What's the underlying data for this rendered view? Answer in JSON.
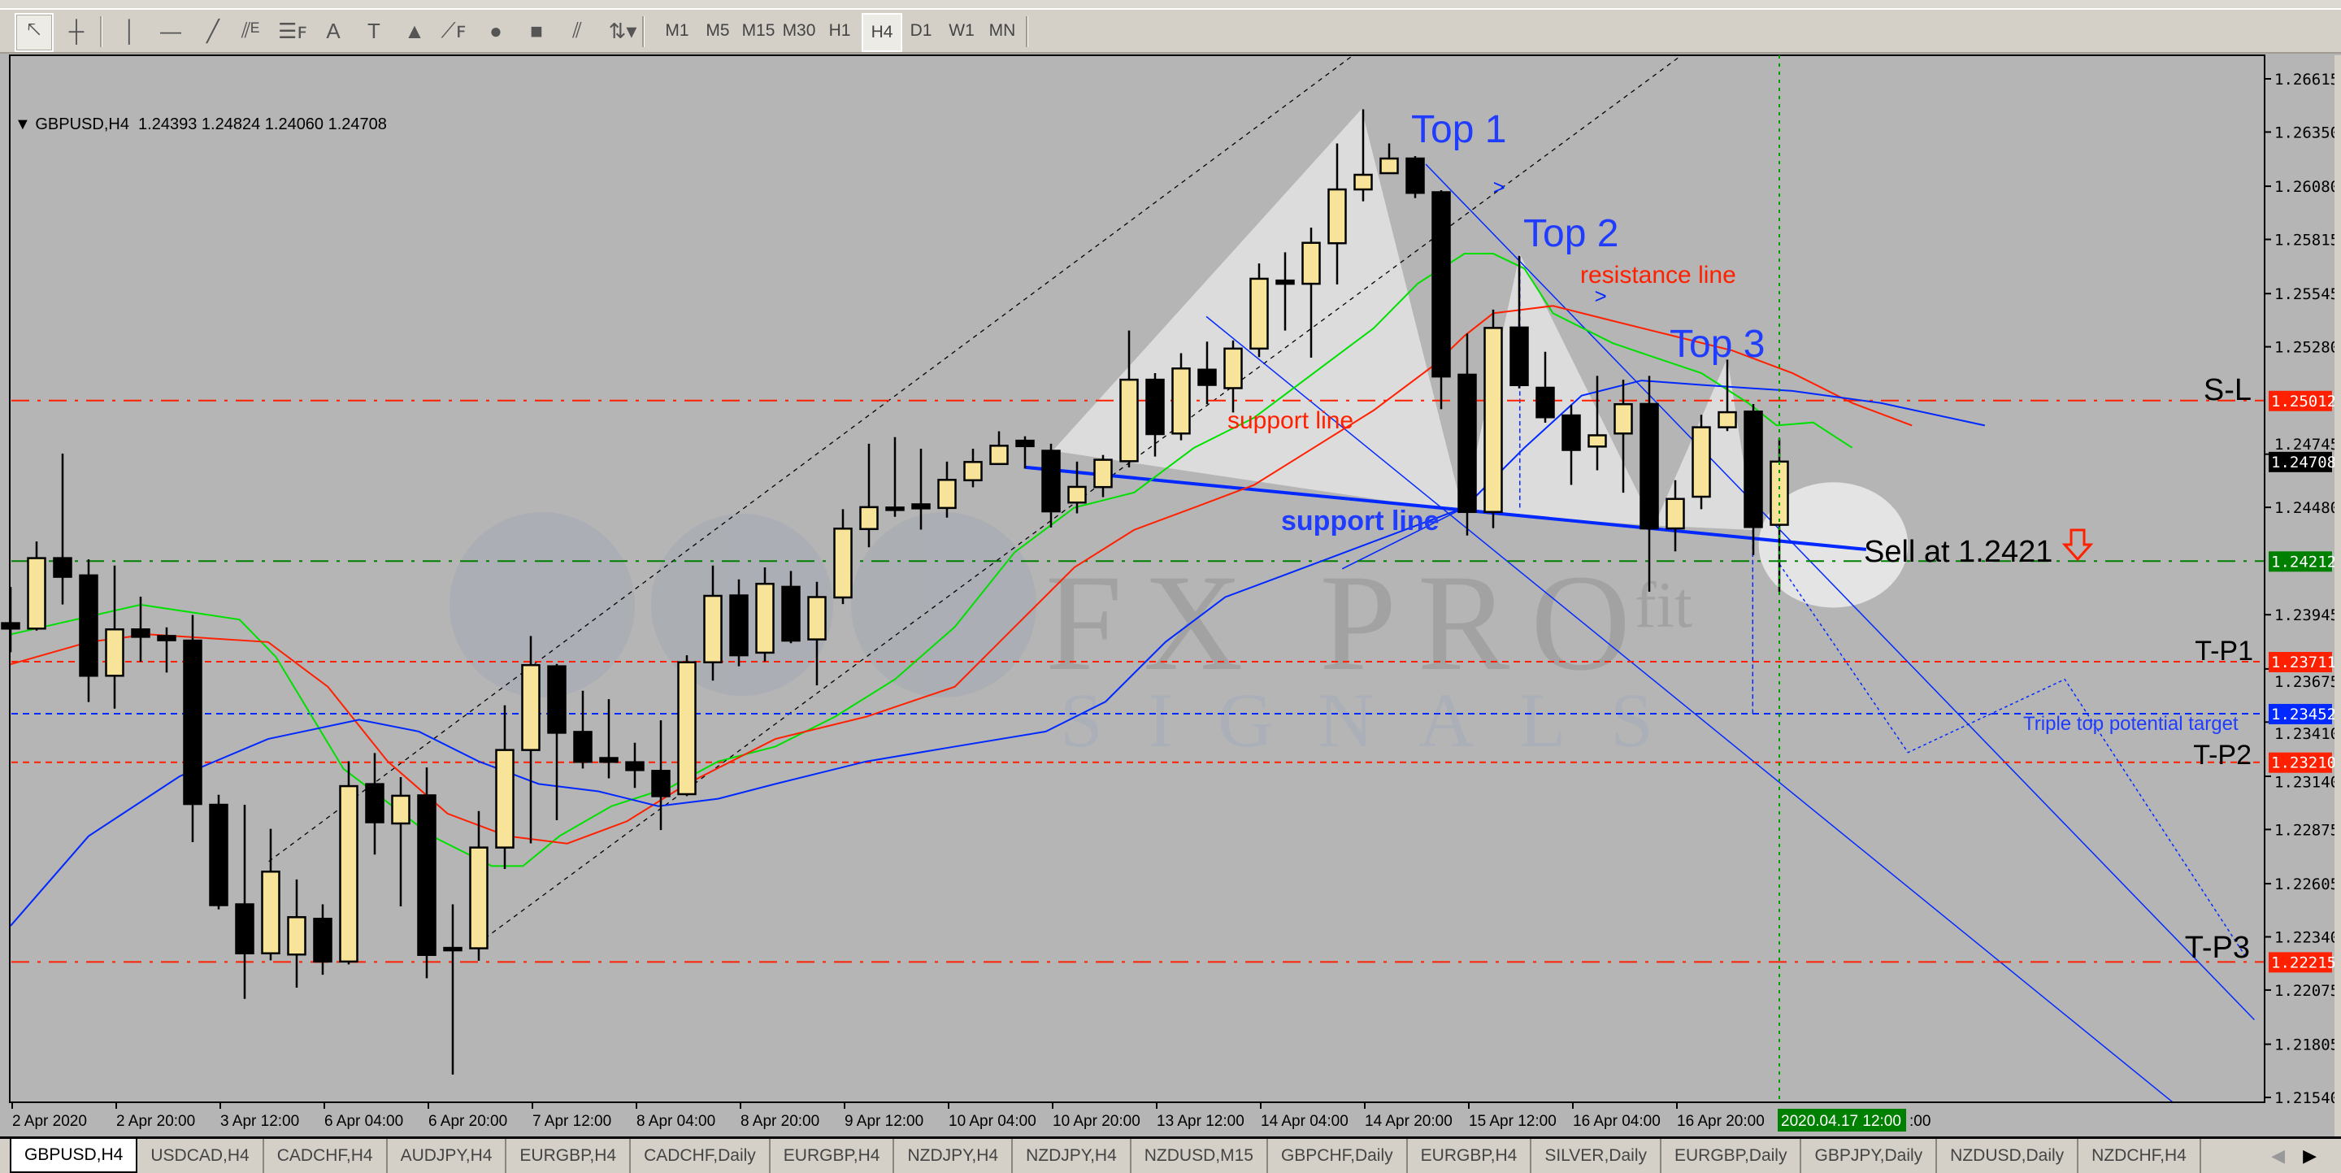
{
  "toolbar": {
    "tools": [
      {
        "name": "cursor",
        "glyph": "🡔"
      },
      {
        "name": "crosshair",
        "glyph": "┼"
      },
      {
        "name": "vertical-line",
        "glyph": "│"
      },
      {
        "name": "horizontal-line",
        "glyph": "—"
      },
      {
        "name": "trendline",
        "glyph": "╱"
      },
      {
        "name": "equidistant-channel",
        "glyph": "⫽ᴱ"
      },
      {
        "name": "fibonacci-retracement",
        "glyph": "☰ꜰ"
      },
      {
        "name": "text",
        "glyph": "A"
      },
      {
        "name": "text-label",
        "glyph": "T"
      },
      {
        "name": "triangle",
        "glyph": "▲"
      },
      {
        "name": "fibonacci-fan",
        "glyph": "⟋ꜰ"
      },
      {
        "name": "ellipse",
        "glyph": "●"
      },
      {
        "name": "rectangle",
        "glyph": "■"
      },
      {
        "name": "parallel-lines",
        "glyph": "⫽"
      },
      {
        "name": "arrows",
        "glyph": "⇅▾"
      }
    ],
    "timeframes": [
      "M1",
      "M5",
      "M15",
      "M30",
      "H1",
      "H4",
      "D1",
      "W1",
      "MN"
    ],
    "active_timeframe": "H4"
  },
  "chart": {
    "header": "GBPUSD,H4  1.24393 1.24824 1.24060 1.24708",
    "annotations": {
      "top1": "Top 1",
      "top2": "Top 2",
      "top3": "Top 3",
      "resistance": "resistance line",
      "support_red": "support line",
      "support_blue": "support line",
      "sell": "Sell at 1.2421",
      "triple_target": "Triple top potential target",
      "sl": "S-L",
      "tp1": "T-P1",
      "tp2": "T-P2",
      "tp3": "T-P3"
    },
    "watermark": {
      "main": "FX PRO",
      "sup": "fit",
      "sub": "SIGNALS"
    },
    "crosshair_time_badge": "2020.04.17 12:00",
    "time_label_tail": ":00"
  },
  "chart_data": {
    "type": "candlestick",
    "symbol": "GBPUSD",
    "timeframe": "H4",
    "ylim": [
      1.2152,
      1.2671
    ],
    "colors": {
      "bull": "#f8e498",
      "bear": "#000000",
      "background": "#b5b5b5",
      "ma_fast": "#00e000",
      "ma_mid": "#ff2000",
      "ma_slow": "#0028ff"
    },
    "price_ticks": [
      "1.26615",
      "1.26350",
      "1.26080",
      "1.25815",
      "1.25545",
      "1.25280",
      "1.24745",
      "1.24480",
      "1.23945",
      "1.23675",
      "1.23410",
      "1.23140",
      "1.22875",
      "1.22605",
      "1.22340",
      "1.22075",
      "1.21805",
      "1.21540"
    ],
    "time_labels": [
      "2 Apr 2020",
      "2 Apr 20:00",
      "3 Apr 12:00",
      "6 Apr 04:00",
      "6 Apr 20:00",
      "7 Apr 12:00",
      "8 Apr 04:00",
      "8 Apr 20:00",
      "9 Apr 12:00",
      "10 Apr 04:00",
      "10 Apr 20:00",
      "13 Apr 12:00",
      "14 Apr 04:00",
      "14 Apr 20:00",
      "15 Apr 12:00",
      "16 Apr 04:00",
      "16 Apr 20:00"
    ],
    "ohlc": [
      [
        1.23903,
        1.24083,
        1.23758,
        1.23876
      ],
      [
        1.23876,
        1.2431,
        1.23866,
        1.24227
      ],
      [
        1.24227,
        1.24748,
        1.23996,
        1.24134
      ],
      [
        1.24141,
        1.24221,
        1.2351,
        1.23641
      ],
      [
        1.23641,
        1.2419,
        1.23477,
        1.23872
      ],
      [
        1.23872,
        1.24035,
        1.23711,
        1.23835
      ],
      [
        1.23839,
        1.23882,
        1.23657,
        1.23818
      ],
      [
        1.23816,
        1.23944,
        1.22812,
        1.23002
      ],
      [
        1.22998,
        1.23048,
        1.22477,
        1.22498
      ],
      [
        1.22502,
        1.22998,
        1.22031,
        1.22258
      ],
      [
        1.22258,
        1.22878,
        1.22223,
        1.22665
      ],
      [
        1.22252,
        1.22626,
        1.22087,
        1.22438
      ],
      [
        1.2243,
        1.22502,
        1.22151,
        1.22217
      ],
      [
        1.22217,
        1.23215,
        1.22203,
        1.23091
      ],
      [
        1.23101,
        1.23256,
        1.2275,
        1.22911
      ],
      [
        1.22905,
        1.23136,
        1.22492,
        1.23043
      ],
      [
        1.23045,
        1.23184,
        1.22134,
        1.2225
      ],
      [
        1.22285,
        1.22502,
        1.21654,
        1.22281
      ],
      [
        1.22283,
        1.22967,
        1.22221,
        1.22785
      ],
      [
        1.22785,
        1.23494,
        1.22678,
        1.23271
      ],
      [
        1.23271,
        1.23839,
        1.22806,
        1.23694
      ],
      [
        1.23688,
        1.237,
        1.22921,
        1.23357
      ],
      [
        1.23361,
        1.23566,
        1.23179,
        1.23212
      ],
      [
        1.23231,
        1.23524,
        1.2313,
        1.23212
      ],
      [
        1.2321,
        1.23307,
        1.23082,
        1.23171
      ],
      [
        1.23167,
        1.23419,
        1.22872,
        1.23041
      ],
      [
        1.23051,
        1.23743,
        1.23041,
        1.23708
      ],
      [
        1.23708,
        1.2419,
        1.23617,
        1.24039
      ],
      [
        1.24041,
        1.24121,
        1.23688,
        1.23743
      ],
      [
        1.23756,
        1.24181,
        1.23712,
        1.24099
      ],
      [
        1.24084,
        1.24163,
        1.23803,
        1.23816
      ],
      [
        1.23822,
        1.24109,
        1.23593,
        1.24033
      ],
      [
        1.24031,
        1.24471,
        1.23998,
        1.24374
      ],
      [
        1.24372,
        1.24797,
        1.24281,
        1.24481
      ],
      [
        1.24479,
        1.2483,
        1.24433,
        1.24477
      ],
      [
        1.24495,
        1.24772,
        1.24369,
        1.24475
      ],
      [
        1.24477,
        1.24708,
        1.24429,
        1.24617
      ],
      [
        1.24615,
        1.24772,
        1.2458,
        1.24706
      ],
      [
        1.24696,
        1.24859,
        1.24694,
        1.24787
      ],
      [
        1.24812,
        1.24834,
        1.24673,
        1.24785
      ],
      [
        1.24762,
        1.24797,
        1.2438,
        1.2446
      ],
      [
        1.24504,
        1.24708,
        1.2445,
        1.24582
      ],
      [
        1.24581,
        1.24741,
        1.24531,
        1.24717
      ],
      [
        1.2471,
        1.25361,
        1.24679,
        1.25116
      ],
      [
        1.25116,
        1.25149,
        1.24733,
        1.24845
      ],
      [
        1.24848,
        1.25248,
        1.24814,
        1.25172
      ],
      [
        1.25166,
        1.25306,
        1.24994,
        1.2509
      ],
      [
        1.25074,
        1.25312,
        1.24953,
        1.25271
      ],
      [
        1.25271,
        1.25695,
        1.25229,
        1.25619
      ],
      [
        1.2561,
        1.25751,
        1.25361,
        1.25594
      ],
      [
        1.25594,
        1.25874,
        1.25226,
        1.25798
      ],
      [
        1.25796,
        1.26293,
        1.25591,
        1.26064
      ],
      [
        1.26064,
        1.26463,
        1.26005,
        1.26137
      ],
      [
        1.26145,
        1.26293,
        1.26145,
        1.26218
      ],
      [
        1.26218,
        1.2623,
        1.26021,
        1.26047
      ],
      [
        1.2605,
        1.2606,
        1.24969,
        1.25132
      ],
      [
        1.25141,
        1.25346,
        1.2434,
        1.24457
      ],
      [
        1.24457,
        1.25465,
        1.24376,
        1.25374
      ],
      [
        1.25376,
        1.25733,
        1.25073,
        1.25089
      ],
      [
        1.25076,
        1.25255,
        1.24902,
        1.24929
      ],
      [
        1.24938,
        1.2499,
        1.24592,
        1.24766
      ],
      [
        1.24783,
        1.25135,
        1.24665,
        1.24839
      ],
      [
        1.24848,
        1.25116,
        1.24553,
        1.24994
      ],
      [
        1.24995,
        1.25135,
        1.2406,
        1.24375
      ],
      [
        1.24375,
        1.24615,
        1.24261,
        1.24522
      ],
      [
        1.24533,
        1.24941,
        1.24471,
        1.24879
      ],
      [
        1.24879,
        1.25216,
        1.2486,
        1.24954
      ],
      [
        1.24957,
        1.24995,
        1.24242,
        1.24382
      ],
      [
        1.24393,
        1.24824,
        1.2406,
        1.24708
      ]
    ],
    "moving_averages": [
      {
        "color": "#00e000",
        "points": [
          [
            0,
            1.23847
          ],
          [
            5,
            1.23995
          ],
          [
            8.8,
            1.23921
          ],
          [
            10.2,
            1.23735
          ],
          [
            12.8,
            1.23177
          ],
          [
            16.2,
            1.22842
          ],
          [
            18.5,
            1.22693
          ],
          [
            19.7,
            1.22693
          ],
          [
            21.1,
            1.22842
          ],
          [
            23.1,
            1.22991
          ],
          [
            25.4,
            1.23088
          ],
          [
            27.2,
            1.23214
          ],
          [
            29.4,
            1.23288
          ],
          [
            31.7,
            1.23437
          ],
          [
            34,
            1.23623
          ],
          [
            36.3,
            1.23884
          ],
          [
            38.6,
            1.24256
          ],
          [
            40.9,
            1.24479
          ],
          [
            43.2,
            1.24554
          ],
          [
            45.5,
            1.24777
          ],
          [
            47.8,
            1.24926
          ],
          [
            50.1,
            1.25149
          ],
          [
            52.4,
            1.25372
          ],
          [
            54.1,
            1.25595
          ],
          [
            55.9,
            1.25744
          ],
          [
            57,
            1.25744
          ],
          [
            58.2,
            1.2567
          ],
          [
            59.3,
            1.25447
          ],
          [
            61.6,
            1.25298
          ],
          [
            63.3,
            1.25223
          ],
          [
            65,
            1.25149
          ],
          [
            66.8,
            1.25
          ],
          [
            67.9,
            1.24888
          ],
          [
            69.3,
            1.24903
          ],
          [
            70.8,
            1.24777
          ]
        ]
      },
      {
        "color": "#ff2000",
        "points": [
          [
            0,
            1.23698
          ],
          [
            3,
            1.23809
          ],
          [
            5.3,
            1.23847
          ],
          [
            9.9,
            1.23809
          ],
          [
            12.2,
            1.23586
          ],
          [
            14.5,
            1.23214
          ],
          [
            16.8,
            1.22954
          ],
          [
            19.1,
            1.22842
          ],
          [
            21.4,
            1.22805
          ],
          [
            23.7,
            1.22916
          ],
          [
            26,
            1.23102
          ],
          [
            29.4,
            1.23326
          ],
          [
            32.9,
            1.23437
          ],
          [
            36.3,
            1.23586
          ],
          [
            38.6,
            1.23884
          ],
          [
            40.9,
            1.24181
          ],
          [
            43.2,
            1.24368
          ],
          [
            45.5,
            1.24479
          ],
          [
            47.8,
            1.24591
          ],
          [
            50.1,
            1.24777
          ],
          [
            52.4,
            1.24963
          ],
          [
            54.7,
            1.25186
          ],
          [
            55.9,
            1.25335
          ],
          [
            57,
            1.25447
          ],
          [
            59.3,
            1.25484
          ],
          [
            61.6,
            1.25409
          ],
          [
            63.9,
            1.25335
          ],
          [
            66.2,
            1.25261
          ],
          [
            68.5,
            1.25149
          ],
          [
            70.8,
            1.25
          ],
          [
            73.1,
            1.24888
          ]
        ]
      },
      {
        "color": "#0028ff",
        "points": [
          [
            0,
            1.22395
          ],
          [
            3,
            1.22842
          ],
          [
            6.5,
            1.2314
          ],
          [
            9.9,
            1.23326
          ],
          [
            13.4,
            1.23422
          ],
          [
            15.7,
            1.23363
          ],
          [
            18,
            1.23214
          ],
          [
            20.3,
            1.23102
          ],
          [
            22.6,
            1.23065
          ],
          [
            24.9,
            1.22991
          ],
          [
            27.2,
            1.23028
          ],
          [
            29.4,
            1.23102
          ],
          [
            32.9,
            1.23214
          ],
          [
            36.3,
            1.23288
          ],
          [
            39.8,
            1.23363
          ],
          [
            42.1,
            1.23512
          ],
          [
            44.4,
            1.23809
          ],
          [
            46.7,
            1.24033
          ],
          [
            49,
            1.24144
          ],
          [
            51.3,
            1.24256
          ],
          [
            53.6,
            1.24368
          ],
          [
            55.9,
            1.24479
          ],
          [
            58.2,
            1.24777
          ],
          [
            60.4,
            1.25037
          ],
          [
            62.7,
            1.25112
          ],
          [
            65,
            1.2509
          ],
          [
            68.5,
            1.2506
          ],
          [
            71.9,
            1.25
          ],
          [
            75.9,
            1.24888
          ]
        ]
      }
    ],
    "levels": [
      {
        "label": "S-L",
        "price": "1.25012",
        "color": "#ff2000",
        "style": "dashdot"
      },
      {
        "label": "Sell",
        "price": "1.24212",
        "color": "#008000",
        "style": "dashdot"
      },
      {
        "label": "T-P1",
        "price": "1.23711",
        "color": "#ff2000",
        "style": "dash"
      },
      {
        "label": "Triple top potential target",
        "price": "1.23452",
        "color": "#0028ff",
        "style": "dash"
      },
      {
        "label": "T-P2",
        "price": "1.23210",
        "color": "#ff2000",
        "style": "dash"
      },
      {
        "label": "T-P3",
        "price": "1.22215",
        "color": "#ff2000",
        "style": "dashdot"
      }
    ],
    "current_price": {
      "price": "1.24708",
      "color": "#000000"
    }
  },
  "tabs": [
    "GBPUSD,H4",
    "USDCAD,H4",
    "CADCHF,H4",
    "AUDJPY,H4",
    "EURGBP,H4",
    "CADCHF,Daily",
    "EURGBP,H4",
    "NZDJPY,H4",
    "NZDJPY,H4",
    "NZDUSD,M15",
    "GBPCHF,Daily",
    "EURGBP,H4",
    "SILVER,Daily",
    "EURGBP,Daily",
    "GBPJPY,Daily",
    "NZDUSD,Daily",
    "NZDCHF,H4"
  ],
  "tab_arrows": {
    "left": "◀",
    "right": "▶"
  }
}
